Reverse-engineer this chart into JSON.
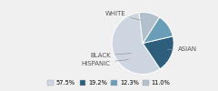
{
  "labels": [
    "WHITE",
    "ASIAN",
    "HISPANIC",
    "BLACK"
  ],
  "values": [
    57.5,
    19.2,
    12.3,
    11.0
  ],
  "colors": [
    "#ccd5e0",
    "#2d5f7c",
    "#6a9db8",
    "#b2bfcc"
  ],
  "legend_labels": [
    "57.5%",
    "19.2%",
    "12.3%",
    "11.0%"
  ],
  "background_color": "#f0f0f0",
  "startangle": 97
}
